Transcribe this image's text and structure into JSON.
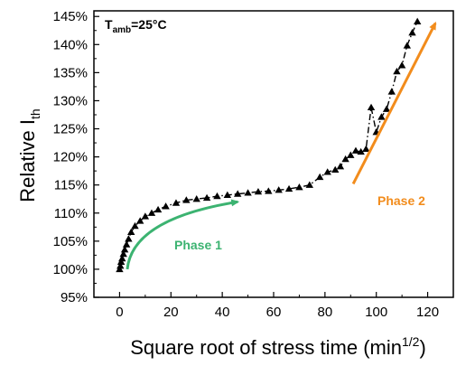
{
  "chart_data": {
    "type": "scatter",
    "xlabel": "Square root of stress time (min",
    "xlabel_sup": "1/2",
    "xlabel_suffix": ")",
    "ylabel": "Relative I",
    "ylabel_sub": "th",
    "xlim": [
      -10,
      130
    ],
    "ylim": [
      95,
      146
    ],
    "xticks": [
      0,
      20,
      40,
      60,
      80,
      100,
      120
    ],
    "yticks": [
      95,
      100,
      105,
      110,
      115,
      120,
      125,
      130,
      135,
      140,
      145
    ],
    "ytick_suffix": "%",
    "grid": false,
    "series": [
      {
        "marker": "triangle",
        "color": "#000000",
        "line_style": "dash-dot",
        "x": [
          0,
          0.3,
          0.6,
          1,
          1.5,
          2,
          2.7,
          3.5,
          4.5,
          6,
          8,
          10,
          12.5,
          15,
          18,
          22,
          26,
          30,
          34,
          38,
          42,
          46,
          50,
          54,
          58,
          62,
          66,
          70,
          74,
          78,
          81,
          84,
          86,
          88,
          90,
          92,
          94,
          96,
          98,
          100,
          102,
          104,
          106,
          108,
          110,
          112,
          114,
          116
        ],
        "y": [
          100,
          100.6,
          101.3,
          101.9,
          102.7,
          103.5,
          104.4,
          105.4,
          106.6,
          107.7,
          108.6,
          109.4,
          110.0,
          110.6,
          111.2,
          111.8,
          112.3,
          112.5,
          112.7,
          113.0,
          113.2,
          113.4,
          113.6,
          113.8,
          113.9,
          114.1,
          114.3,
          114.6,
          115.0,
          116.4,
          117.3,
          117.7,
          118.3,
          119.6,
          120.3,
          121.1,
          120.9,
          121.4,
          128.8,
          124.4,
          127.1,
          128.5,
          131.6,
          135.2,
          136.3,
          139.8,
          142.1,
          144.1
        ]
      }
    ],
    "annotations": {
      "condition_main": "T",
      "condition_sub": "amb",
      "condition_value": "=25°C",
      "phase1_label": "Phase 1",
      "phase1_color": "#3cb371",
      "phase2_label": "Phase 2",
      "phase2_color": "#f28c1c"
    }
  }
}
